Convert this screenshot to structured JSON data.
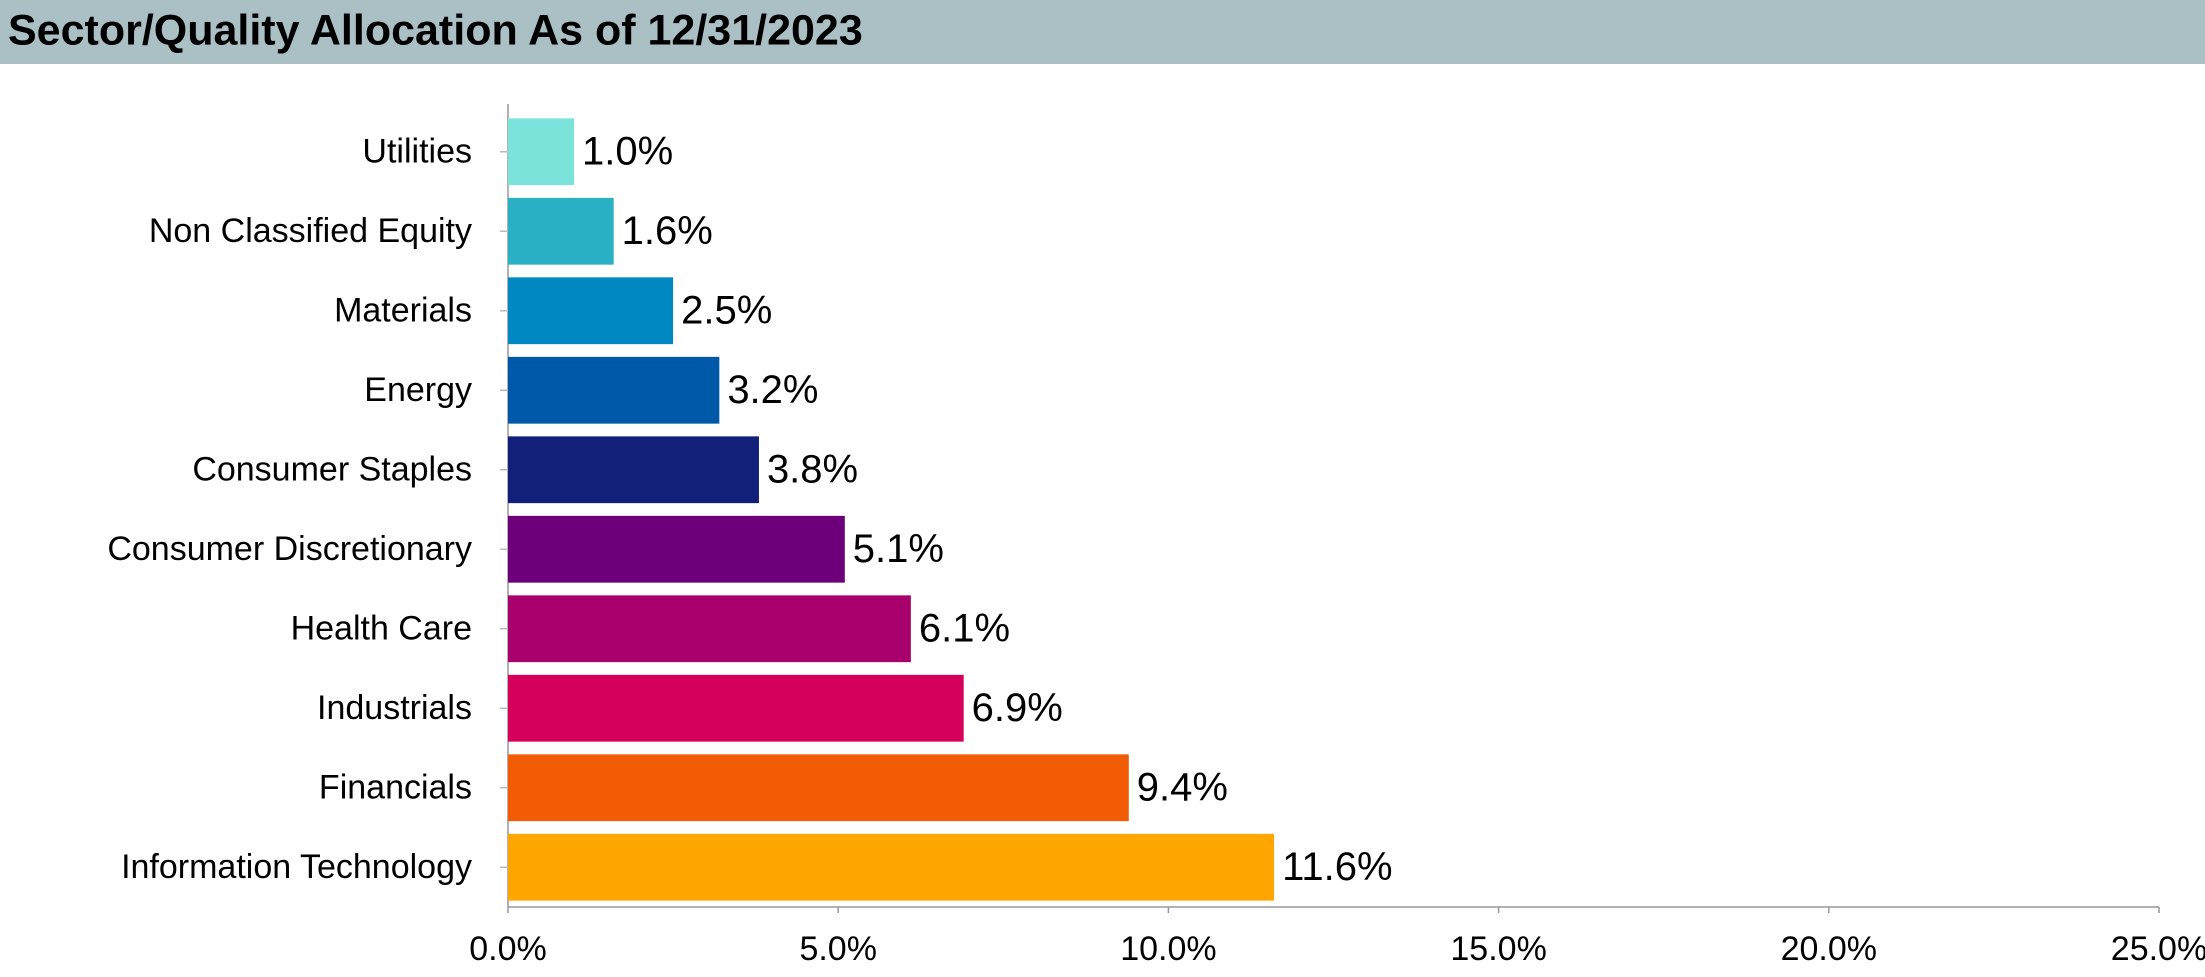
{
  "chart_data": {
    "type": "barh",
    "title": "Sector/Quality Allocation As of 12/31/2023",
    "categories": [
      "Utilities",
      "Non Classified Equity",
      "Materials",
      "Energy",
      "Consumer Staples",
      "Consumer Discretionary",
      "Health Care",
      "Industrials",
      "Financials",
      "Information Technology"
    ],
    "values": [
      1.0,
      1.6,
      2.5,
      3.2,
      3.8,
      5.1,
      6.1,
      6.9,
      9.4,
      11.6
    ],
    "value_labels": [
      "1.0%",
      "1.6%",
      "2.5%",
      "3.2%",
      "3.8%",
      "5.1%",
      "6.1%",
      "6.9%",
      "9.4%",
      "11.6%"
    ],
    "colors": [
      "#7be3d9",
      "#2ab0c4",
      "#0088c2",
      "#0058a8",
      "#13207a",
      "#6d007a",
      "#a8006c",
      "#d4005a",
      "#f25c05",
      "#ffa600"
    ],
    "xlim": [
      0,
      25
    ],
    "xticks": [
      {
        "value": 0,
        "label": "0.0%"
      },
      {
        "value": 5,
        "label": "5.0%"
      },
      {
        "value": 10,
        "label": "10.0%"
      },
      {
        "value": 15,
        "label": "15.0%"
      },
      {
        "value": 20,
        "label": "20.0%"
      },
      {
        "value": 25,
        "label": "25.0%"
      }
    ],
    "grid": false
  }
}
